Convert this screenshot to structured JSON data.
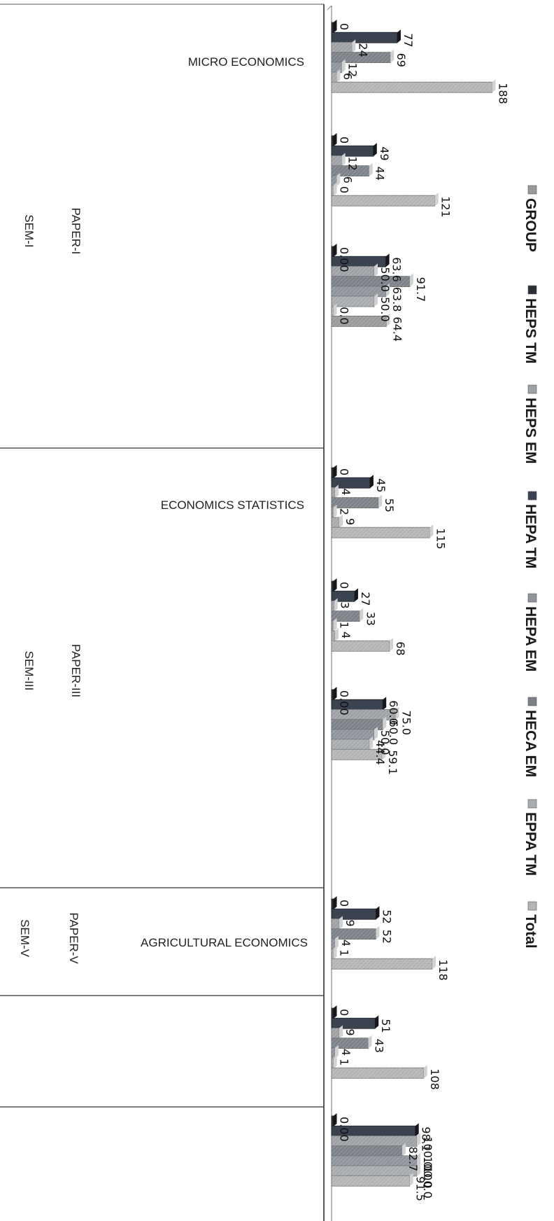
{
  "chart_data": {
    "type": "bar",
    "orientation": "horizontal",
    "legend_position": "right",
    "grid": false,
    "series": [
      {
        "name": "GROUP",
        "color": "#9a9a9a"
      },
      {
        "name": "HEPS TM",
        "color": "#2b2f36"
      },
      {
        "name": "HEPS EM",
        "color": "#9ea2a6"
      },
      {
        "name": "HEPA TM",
        "color": "#3b4250"
      },
      {
        "name": "HEPA EM",
        "color": "#8f959b"
      },
      {
        "name": "HECA EM",
        "color": "#7c8287"
      },
      {
        "name": "EPPA TM",
        "color": "#a9acae"
      },
      {
        "name": "Total",
        "color": "#b3b5b6"
      }
    ],
    "row_labels": [
      {
        "semester": "SEM-I",
        "paper": "PAPER-I",
        "subject": "MICRO ECONOMICS"
      },
      {
        "semester": "SEM-III",
        "paper": "PAPER-III",
        "subject": "ECONOMICS STATISTICS"
      },
      {
        "semester": "SEM-V",
        "paper": "PAPER-V",
        "subject": "AGRICULTURAL ECONOMICS"
      },
      {
        "semester": "",
        "paper": "",
        "subject": ""
      },
      {
        "semester": "",
        "paper": "",
        "subject": ""
      }
    ],
    "groups": [
      {
        "row": 0,
        "bars": [
          {
            "series": 1,
            "value": 0,
            "label": "0"
          },
          {
            "series": 3,
            "value": 77,
            "label": "77"
          },
          {
            "series": 2,
            "value": 24,
            "label": "24"
          },
          {
            "series": 5,
            "value": 69,
            "label": "69"
          },
          {
            "series": 4,
            "value": 12,
            "label": "12"
          },
          {
            "series": 6,
            "value": 6,
            "label": "6"
          },
          {
            "series": 7,
            "value": 188,
            "label": "188"
          }
        ]
      },
      {
        "row": 0,
        "bars": [
          {
            "series": 1,
            "value": 0,
            "label": "0"
          },
          {
            "series": 3,
            "value": 49,
            "label": "49"
          },
          {
            "series": 2,
            "value": 12,
            "label": "12"
          },
          {
            "series": 5,
            "value": 44,
            "label": "44"
          },
          {
            "series": 4,
            "value": 6,
            "label": "6"
          },
          {
            "series": 6,
            "value": 0,
            "label": "0"
          },
          {
            "series": 7,
            "value": 121,
            "label": "121"
          }
        ]
      },
      {
        "row": 0,
        "bars": [
          {
            "series": 1,
            "value": 0,
            "label": "0.00"
          },
          {
            "series": 3,
            "value": 63.6,
            "label": "63.6"
          },
          {
            "series": 2,
            "value": 50.0,
            "label": "50.0"
          },
          {
            "series": 5,
            "value": 91.7,
            "label": "91.7"
          },
          {
            "series": 4,
            "value": 63.8,
            "label": "63.8"
          },
          {
            "series": 6,
            "value": 50.0,
            "label": "50.0"
          },
          {
            "series": 7,
            "value": 0,
            "label": "0.0"
          },
          {
            "series": 0,
            "value": 64.4,
            "label": "64.4"
          }
        ]
      },
      {
        "row": 1,
        "bars": [
          {
            "series": 1,
            "value": 0,
            "label": "0"
          },
          {
            "series": 3,
            "value": 45,
            "label": "45"
          },
          {
            "series": 2,
            "value": 4,
            "label": "4"
          },
          {
            "series": 5,
            "value": 55,
            "label": "55"
          },
          {
            "series": 4,
            "value": 2,
            "label": "2"
          },
          {
            "series": 6,
            "value": 9,
            "label": "9"
          },
          {
            "series": 7,
            "value": 115,
            "label": "115"
          }
        ]
      },
      {
        "row": 1,
        "bars": [
          {
            "series": 1,
            "value": 0,
            "label": "0"
          },
          {
            "series": 3,
            "value": 27,
            "label": "27"
          },
          {
            "series": 2,
            "value": 3,
            "label": "3"
          },
          {
            "series": 5,
            "value": 33,
            "label": "33"
          },
          {
            "series": 4,
            "value": 1,
            "label": "1"
          },
          {
            "series": 6,
            "value": 4,
            "label": "4"
          },
          {
            "series": 7,
            "value": 68,
            "label": "68"
          }
        ]
      },
      {
        "row": 1,
        "bars": [
          {
            "series": 1,
            "value": 0,
            "label": "0.00"
          },
          {
            "series": 3,
            "value": 60.0,
            "label": "60.0"
          },
          {
            "series": 2,
            "value": 75.0,
            "label": "75.0"
          },
          {
            "series": 5,
            "value": 60.0,
            "label": "60.0"
          },
          {
            "series": 4,
            "value": 50.0,
            "label": "50.0"
          },
          {
            "series": 6,
            "value": 44.4,
            "label": "44.4"
          },
          {
            "series": 7,
            "value": 59.1,
            "label": "59.1"
          }
        ]
      },
      {
        "row": 2,
        "bars": [
          {
            "series": 1,
            "value": 0,
            "label": "0"
          },
          {
            "series": 3,
            "value": 52,
            "label": "52"
          },
          {
            "series": 2,
            "value": 9,
            "label": "9"
          },
          {
            "series": 5,
            "value": 52,
            "label": "52"
          },
          {
            "series": 4,
            "value": 4,
            "label": "4"
          },
          {
            "series": 6,
            "value": 1,
            "label": "1"
          },
          {
            "series": 7,
            "value": 118,
            "label": "118"
          }
        ]
      },
      {
        "row": 3,
        "bars": [
          {
            "series": 1,
            "value": 0,
            "label": "0"
          },
          {
            "series": 3,
            "value": 51,
            "label": "51"
          },
          {
            "series": 2,
            "value": 9,
            "label": "9"
          },
          {
            "series": 5,
            "value": 43,
            "label": "43"
          },
          {
            "series": 4,
            "value": 4,
            "label": "4"
          },
          {
            "series": 6,
            "value": 1,
            "label": "1"
          },
          {
            "series": 7,
            "value": 108,
            "label": "108"
          }
        ]
      },
      {
        "row": 4,
        "bars": [
          {
            "series": 1,
            "value": 0,
            "label": "0.00"
          },
          {
            "series": 3,
            "value": 98.1,
            "label": "98.1"
          },
          {
            "series": 2,
            "value": 100.0,
            "label": "100.0"
          },
          {
            "series": 5,
            "value": 82.7,
            "label": "82.7"
          },
          {
            "series": 4,
            "value": 100.0,
            "label": "100.0"
          },
          {
            "series": 6,
            "value": 100.0,
            "label": "100.0"
          },
          {
            "series": 7,
            "value": 91.5,
            "label": "91.5"
          }
        ]
      }
    ]
  }
}
